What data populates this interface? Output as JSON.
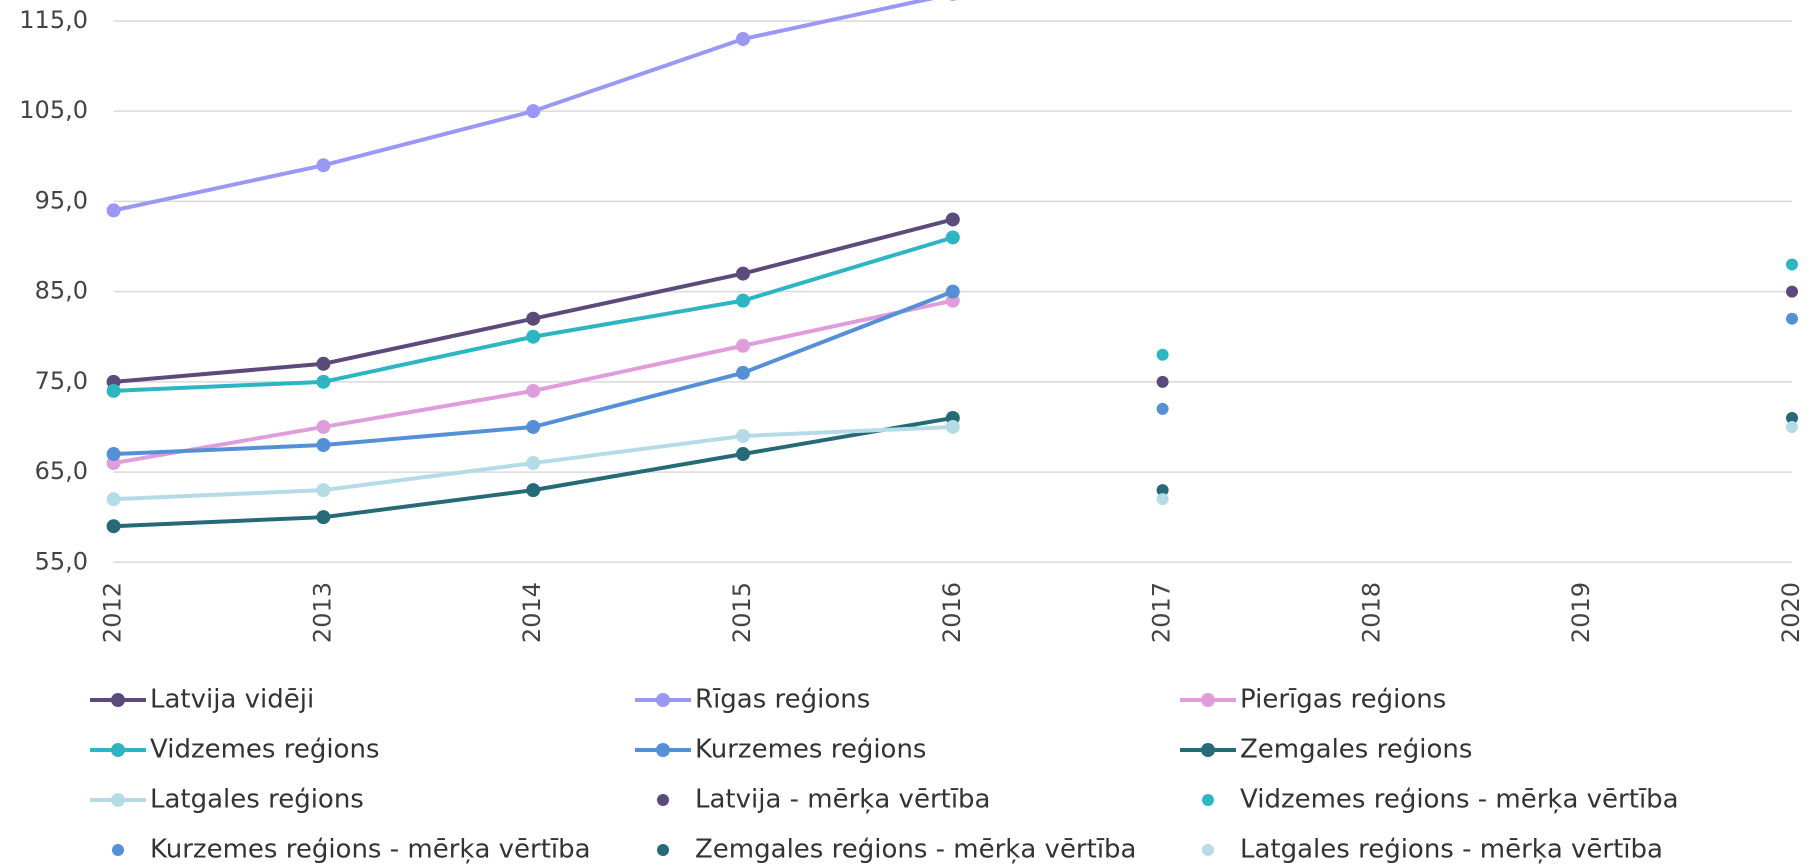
{
  "chart_data": {
    "type": "line",
    "categories": [
      "2012",
      "2013",
      "2014",
      "2015",
      "2016",
      "2017",
      "2018",
      "2019",
      "2020"
    ],
    "ylim": [
      55,
      117
    ],
    "yticks": [
      {
        "value": 55,
        "label": "55,0"
      },
      {
        "value": 65,
        "label": "65,0"
      },
      {
        "value": 75,
        "label": "75,0"
      },
      {
        "value": 85,
        "label": "85,0"
      },
      {
        "value": 95,
        "label": "95,0"
      },
      {
        "value": 105,
        "label": "105,0"
      },
      {
        "value": 115,
        "label": "115,0"
      }
    ],
    "grid": true,
    "series": [
      {
        "name": "Latvija vidēji",
        "type": "line",
        "color": "#5c4a7a",
        "values": [
          75,
          77,
          82,
          87,
          93,
          null,
          null,
          null,
          null
        ]
      },
      {
        "name": "Rīgas reģions",
        "type": "line",
        "color": "#9b97f5",
        "values": [
          94,
          99,
          105,
          113,
          118,
          null,
          null,
          null,
          null
        ]
      },
      {
        "name": "Pierīgas reģions",
        "type": "line",
        "color": "#e09ddc",
        "values": [
          66,
          70,
          74,
          79,
          84,
          null,
          null,
          null,
          null
        ]
      },
      {
        "name": "Vidzemes reģions",
        "type": "line",
        "color": "#2eb5c2",
        "values": [
          74,
          75,
          80,
          84,
          91,
          null,
          null,
          null,
          null
        ]
      },
      {
        "name": "Kurzemes reģions",
        "type": "line",
        "color": "#5590d6",
        "values": [
          67,
          68,
          70,
          76,
          85,
          null,
          null,
          null,
          null
        ]
      },
      {
        "name": "Zemgales reģions",
        "type": "line",
        "color": "#266a78",
        "values": [
          59,
          60,
          63,
          67,
          71,
          null,
          null,
          null,
          null
        ]
      },
      {
        "name": "Latgales reģions",
        "type": "line",
        "color": "#b5dce6",
        "values": [
          62,
          63,
          66,
          69,
          70,
          null,
          null,
          null,
          null
        ]
      },
      {
        "name": "Latvija - mērķa vērtība",
        "type": "scatter",
        "color": "#5c4a7a",
        "values": [
          null,
          null,
          null,
          null,
          null,
          75,
          null,
          null,
          85
        ]
      },
      {
        "name": "Vidzemes reģions - mērķa vērtība",
        "type": "scatter",
        "color": "#2eb5c2",
        "values": [
          null,
          null,
          null,
          null,
          null,
          78,
          null,
          null,
          88
        ]
      },
      {
        "name": "Kurzemes reģions - mērķa vērtība",
        "type": "scatter",
        "color": "#5590d6",
        "values": [
          null,
          null,
          null,
          null,
          null,
          72,
          null,
          null,
          82
        ]
      },
      {
        "name": "Zemgales reģions - mērķa vērtība",
        "type": "scatter",
        "color": "#266a78",
        "values": [
          null,
          null,
          null,
          null,
          null,
          63,
          null,
          null,
          71
        ]
      },
      {
        "name": "Latgales reģions - mērķa vērtība",
        "type": "scatter",
        "color": "#b5dce6",
        "values": [
          null,
          null,
          null,
          null,
          null,
          62,
          null,
          null,
          70
        ]
      }
    ]
  }
}
